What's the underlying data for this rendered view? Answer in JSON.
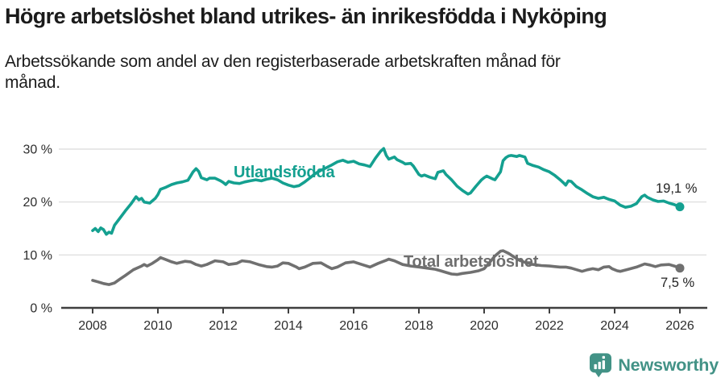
{
  "chart_data": {
    "type": "line",
    "title": "Högre arbetslöshet bland utrikes- än inrikesfödda i Nyköping",
    "subtitle": "Arbetssökande som andel av den registerbaserade arbetskraften månad för\nmånad.",
    "unit": "%",
    "grid": "horizontal",
    "legend_position": "inline-labels",
    "ylim": [
      0,
      32
    ],
    "xlim": [
      2007,
      2026.8
    ],
    "y_ticks": [
      {
        "value": 30,
        "label": "30 %"
      },
      {
        "value": 20,
        "label": "20 %"
      },
      {
        "value": 10,
        "label": "10 %"
      },
      {
        "value": 0,
        "label": "0 %"
      }
    ],
    "x_ticks": [
      {
        "value": 2008,
        "label": "2008"
      },
      {
        "value": 2010,
        "label": "2010"
      },
      {
        "value": 2012,
        "label": "2012"
      },
      {
        "value": 2014,
        "label": "2014"
      },
      {
        "value": 2016,
        "label": "2016"
      },
      {
        "value": 2018,
        "label": "2018"
      },
      {
        "value": 2020,
        "label": "2020"
      },
      {
        "value": 2022,
        "label": "2022"
      },
      {
        "value": 2024,
        "label": "2024"
      },
      {
        "value": 2026,
        "label": "2026"
      }
    ],
    "series": [
      {
        "id": "utlandsfodda",
        "name": "Utlandsfödda",
        "color": "#14a090",
        "end_label": "19,1 %",
        "end_value": 19.1,
        "points": [
          [
            2008.0,
            14.6
          ],
          [
            2008.08,
            15.0
          ],
          [
            2008.17,
            14.4
          ],
          [
            2008.25,
            15.1
          ],
          [
            2008.33,
            14.8
          ],
          [
            2008.42,
            13.9
          ],
          [
            2008.5,
            14.3
          ],
          [
            2008.58,
            14.1
          ],
          [
            2008.67,
            15.6
          ],
          [
            2008.83,
            16.9
          ],
          [
            2009.0,
            18.3
          ],
          [
            2009.17,
            19.6
          ],
          [
            2009.33,
            21.0
          ],
          [
            2009.42,
            20.4
          ],
          [
            2009.5,
            20.7
          ],
          [
            2009.58,
            20.0
          ],
          [
            2009.75,
            19.8
          ],
          [
            2009.92,
            20.7
          ],
          [
            2010.0,
            21.4
          ],
          [
            2010.08,
            22.4
          ],
          [
            2010.25,
            22.8
          ],
          [
            2010.42,
            23.3
          ],
          [
            2010.58,
            23.6
          ],
          [
            2010.75,
            23.8
          ],
          [
            2010.92,
            24.1
          ],
          [
            2011.0,
            24.9
          ],
          [
            2011.08,
            25.7
          ],
          [
            2011.17,
            26.3
          ],
          [
            2011.25,
            25.8
          ],
          [
            2011.33,
            24.6
          ],
          [
            2011.5,
            24.2
          ],
          [
            2011.58,
            24.5
          ],
          [
            2011.75,
            24.5
          ],
          [
            2011.92,
            24.0
          ],
          [
            2012.0,
            23.7
          ],
          [
            2012.08,
            23.3
          ],
          [
            2012.17,
            23.9
          ],
          [
            2012.33,
            23.6
          ],
          [
            2012.5,
            23.5
          ],
          [
            2012.67,
            23.8
          ],
          [
            2012.83,
            24.0
          ],
          [
            2013.0,
            24.2
          ],
          [
            2013.17,
            24.0
          ],
          [
            2013.33,
            24.3
          ],
          [
            2013.5,
            24.5
          ],
          [
            2013.67,
            24.2
          ],
          [
            2013.83,
            23.6
          ],
          [
            2014.0,
            23.2
          ],
          [
            2014.17,
            22.9
          ],
          [
            2014.33,
            23.1
          ],
          [
            2014.5,
            23.8
          ],
          [
            2014.67,
            24.6
          ],
          [
            2014.83,
            25.4
          ],
          [
            2015.0,
            26.0
          ],
          [
            2015.17,
            26.5
          ],
          [
            2015.33,
            27.0
          ],
          [
            2015.5,
            27.6
          ],
          [
            2015.67,
            27.9
          ],
          [
            2015.83,
            27.5
          ],
          [
            2016.0,
            27.7
          ],
          [
            2016.17,
            27.2
          ],
          [
            2016.33,
            27.0
          ],
          [
            2016.5,
            26.7
          ],
          [
            2016.67,
            28.3
          ],
          [
            2016.83,
            29.6
          ],
          [
            2016.92,
            30.1
          ],
          [
            2017.0,
            28.8
          ],
          [
            2017.08,
            28.1
          ],
          [
            2017.25,
            28.5
          ],
          [
            2017.33,
            28.0
          ],
          [
            2017.5,
            27.5
          ],
          [
            2017.58,
            27.2
          ],
          [
            2017.75,
            27.3
          ],
          [
            2017.83,
            26.8
          ],
          [
            2018.0,
            25.2
          ],
          [
            2018.08,
            24.9
          ],
          [
            2018.17,
            25.1
          ],
          [
            2018.33,
            24.7
          ],
          [
            2018.5,
            24.4
          ],
          [
            2018.58,
            25.6
          ],
          [
            2018.75,
            25.9
          ],
          [
            2018.83,
            25.2
          ],
          [
            2019.0,
            24.2
          ],
          [
            2019.17,
            23.0
          ],
          [
            2019.33,
            22.2
          ],
          [
            2019.5,
            21.5
          ],
          [
            2019.58,
            21.7
          ],
          [
            2019.75,
            23.0
          ],
          [
            2019.92,
            24.2
          ],
          [
            2020.0,
            24.6
          ],
          [
            2020.08,
            24.9
          ],
          [
            2020.25,
            24.4
          ],
          [
            2020.33,
            24.2
          ],
          [
            2020.5,
            25.7
          ],
          [
            2020.58,
            27.8
          ],
          [
            2020.67,
            28.4
          ],
          [
            2020.75,
            28.7
          ],
          [
            2020.83,
            28.8
          ],
          [
            2021.0,
            28.6
          ],
          [
            2021.08,
            28.8
          ],
          [
            2021.25,
            28.5
          ],
          [
            2021.33,
            27.3
          ],
          [
            2021.5,
            26.9
          ],
          [
            2021.67,
            26.6
          ],
          [
            2021.83,
            26.1
          ],
          [
            2022.0,
            25.7
          ],
          [
            2022.17,
            25.0
          ],
          [
            2022.33,
            24.2
          ],
          [
            2022.42,
            23.7
          ],
          [
            2022.5,
            23.2
          ],
          [
            2022.58,
            24.0
          ],
          [
            2022.67,
            23.9
          ],
          [
            2022.83,
            22.9
          ],
          [
            2023.0,
            22.3
          ],
          [
            2023.17,
            21.6
          ],
          [
            2023.33,
            21.0
          ],
          [
            2023.5,
            20.7
          ],
          [
            2023.67,
            20.9
          ],
          [
            2023.83,
            20.5
          ],
          [
            2024.0,
            20.2
          ],
          [
            2024.17,
            19.4
          ],
          [
            2024.33,
            19.0
          ],
          [
            2024.5,
            19.2
          ],
          [
            2024.67,
            19.7
          ],
          [
            2024.83,
            21.0
          ],
          [
            2024.92,
            21.3
          ],
          [
            2025.0,
            20.9
          ],
          [
            2025.17,
            20.4
          ],
          [
            2025.33,
            20.1
          ],
          [
            2025.5,
            20.2
          ],
          [
            2025.67,
            19.8
          ],
          [
            2025.83,
            19.5
          ],
          [
            2026.0,
            19.1
          ]
        ]
      },
      {
        "id": "total",
        "name": "Total arbetslöshet",
        "color": "#707070",
        "end_label": "7,5 %",
        "end_value": 7.5,
        "points": [
          [
            2008.0,
            5.2
          ],
          [
            2008.17,
            4.9
          ],
          [
            2008.33,
            4.6
          ],
          [
            2008.5,
            4.4
          ],
          [
            2008.67,
            4.7
          ],
          [
            2008.83,
            5.4
          ],
          [
            2009.0,
            6.1
          ],
          [
            2009.25,
            7.2
          ],
          [
            2009.5,
            7.9
          ],
          [
            2009.58,
            8.2
          ],
          [
            2009.67,
            7.9
          ],
          [
            2009.83,
            8.4
          ],
          [
            2010.0,
            9.1
          ],
          [
            2010.08,
            9.5
          ],
          [
            2010.25,
            9.1
          ],
          [
            2010.42,
            8.7
          ],
          [
            2010.58,
            8.4
          ],
          [
            2010.83,
            8.8
          ],
          [
            2011.0,
            8.7
          ],
          [
            2011.17,
            8.2
          ],
          [
            2011.33,
            7.9
          ],
          [
            2011.5,
            8.2
          ],
          [
            2011.75,
            8.9
          ],
          [
            2012.0,
            8.7
          ],
          [
            2012.17,
            8.2
          ],
          [
            2012.42,
            8.4
          ],
          [
            2012.58,
            8.9
          ],
          [
            2012.83,
            8.7
          ],
          [
            2013.08,
            8.2
          ],
          [
            2013.33,
            7.8
          ],
          [
            2013.5,
            7.7
          ],
          [
            2013.67,
            7.9
          ],
          [
            2013.83,
            8.5
          ],
          [
            2014.0,
            8.4
          ],
          [
            2014.25,
            7.7
          ],
          [
            2014.33,
            7.4
          ],
          [
            2014.5,
            7.7
          ],
          [
            2014.75,
            8.4
          ],
          [
            2015.0,
            8.5
          ],
          [
            2015.17,
            7.9
          ],
          [
            2015.33,
            7.4
          ],
          [
            2015.5,
            7.7
          ],
          [
            2015.75,
            8.5
          ],
          [
            2016.0,
            8.7
          ],
          [
            2016.25,
            8.2
          ],
          [
            2016.5,
            7.7
          ],
          [
            2016.75,
            8.4
          ],
          [
            2017.0,
            9.0
          ],
          [
            2017.08,
            9.2
          ],
          [
            2017.25,
            8.9
          ],
          [
            2017.5,
            8.2
          ],
          [
            2017.75,
            7.9
          ],
          [
            2018.0,
            7.7
          ],
          [
            2018.25,
            7.5
          ],
          [
            2018.5,
            7.3
          ],
          [
            2018.67,
            7.0
          ],
          [
            2018.83,
            6.7
          ],
          [
            2019.0,
            6.4
          ],
          [
            2019.17,
            6.3
          ],
          [
            2019.33,
            6.5
          ],
          [
            2019.58,
            6.7
          ],
          [
            2019.83,
            7.0
          ],
          [
            2020.0,
            7.4
          ],
          [
            2020.17,
            8.6
          ],
          [
            2020.33,
            9.8
          ],
          [
            2020.5,
            10.7
          ],
          [
            2020.58,
            10.8
          ],
          [
            2020.75,
            10.3
          ],
          [
            2020.92,
            9.6
          ],
          [
            2021.08,
            9.0
          ],
          [
            2021.25,
            8.6
          ],
          [
            2021.5,
            8.2
          ],
          [
            2021.75,
            8.0
          ],
          [
            2022.0,
            7.9
          ],
          [
            2022.17,
            7.8
          ],
          [
            2022.33,
            7.7
          ],
          [
            2022.5,
            7.7
          ],
          [
            2022.67,
            7.5
          ],
          [
            2023.0,
            6.9
          ],
          [
            2023.17,
            7.2
          ],
          [
            2023.33,
            7.4
          ],
          [
            2023.5,
            7.2
          ],
          [
            2023.67,
            7.7
          ],
          [
            2023.83,
            7.8
          ],
          [
            2023.92,
            7.4
          ],
          [
            2024.08,
            7.0
          ],
          [
            2024.17,
            6.9
          ],
          [
            2024.42,
            7.3
          ],
          [
            2024.67,
            7.7
          ],
          [
            2024.92,
            8.3
          ],
          [
            2025.08,
            8.1
          ],
          [
            2025.25,
            7.8
          ],
          [
            2025.42,
            8.1
          ],
          [
            2025.67,
            8.2
          ],
          [
            2025.83,
            7.9
          ],
          [
            2026.0,
            7.5
          ]
        ]
      }
    ]
  },
  "footer": {
    "brand": "Newsworthy",
    "logo_icon": "newsworthy-barchart-bubble-icon",
    "brand_color": "#429286"
  }
}
